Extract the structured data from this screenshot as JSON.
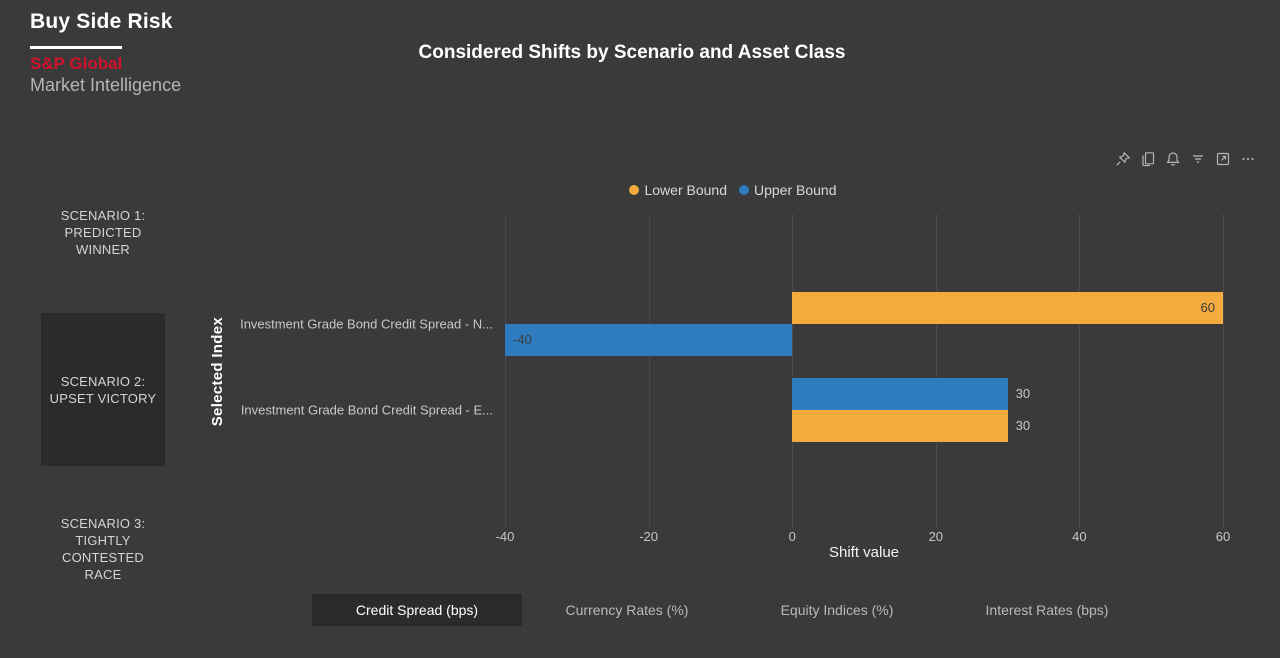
{
  "branding": {
    "app_title": "Buy Side Risk",
    "company": "S&P Global",
    "division": "Market Intelligence",
    "brand_red": "#d0112b"
  },
  "title": "Considered Shifts by Scenario and Asset Class",
  "visual_header": {
    "icons": [
      "pin",
      "copy",
      "alerts",
      "filter",
      "focus-mode",
      "more-options"
    ]
  },
  "scenario_buttons": [
    {
      "label": "SCENARIO 1:\nPREDICTED\nWINNER",
      "selected": false
    },
    {
      "label": "SCENARIO 2:\nUPSET VICTORY",
      "selected": true
    },
    {
      "label": "SCENARIO 3:\nTIGHTLY\nCONTESTED\nRACE",
      "selected": false
    }
  ],
  "asset_class_tabs": [
    {
      "label": "Credit Spread (bps)",
      "selected": true
    },
    {
      "label": "Currency Rates (%)",
      "selected": false
    },
    {
      "label": "Equity Indices (%)",
      "selected": false
    },
    {
      "label": "Interest Rates (bps)",
      "selected": false
    }
  ],
  "chart_data": {
    "type": "bar",
    "orientation": "horizontal",
    "title": "Considered Shifts by Scenario and Asset Class",
    "xlabel": "Shift value",
    "ylabel": "Selected Index",
    "xlim": [
      -40,
      60
    ],
    "x_ticks": [
      -40,
      -20,
      0,
      20,
      40,
      60
    ],
    "grid": "dotted-vertical",
    "legend_position": "top-center",
    "series": [
      {
        "name": "Lower Bound",
        "color": "#f2ab3c"
      },
      {
        "name": "Upper Bound",
        "color": "#2e7bbf"
      }
    ],
    "categories": [
      "Investment Grade Bond Credit Spread - N...",
      "Investment Grade Bond Credit Spread - E..."
    ],
    "groups": [
      {
        "category": "Investment Grade Bond Credit Spread - N...",
        "bars": [
          {
            "series": "Lower Bound",
            "value": 60,
            "label": "60",
            "label_position": "inside"
          },
          {
            "series": "Upper Bound",
            "value": -40,
            "label": "-40",
            "label_position": "inside"
          }
        ]
      },
      {
        "category": "Investment Grade Bond Credit Spread - E...",
        "bars": [
          {
            "series": "Upper Bound",
            "value": 30,
            "label": "30",
            "label_position": "outside"
          },
          {
            "series": "Lower Bound",
            "value": 30,
            "label": "30",
            "label_position": "outside"
          }
        ]
      }
    ]
  },
  "colors": {
    "background": "#3a3a3a",
    "selected_panel": "#2b2b2b",
    "inside_label": "#3d3d3d",
    "outside_label": "#c8c8c8"
  }
}
